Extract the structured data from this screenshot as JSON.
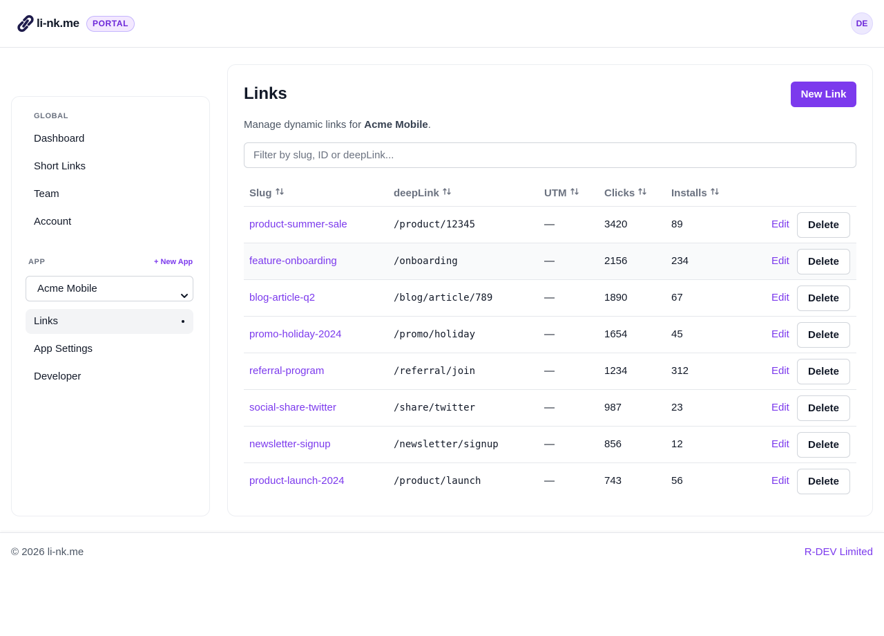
{
  "header": {
    "brand": "li-nk.me",
    "badge": "PORTAL",
    "avatar_initials": "DE",
    "logo_icon": "chain-link-icon"
  },
  "sidebar": {
    "global_label": "GLOBAL",
    "global_items": [
      {
        "label": "Dashboard"
      },
      {
        "label": "Short Links"
      },
      {
        "label": "Team"
      },
      {
        "label": "Account"
      }
    ],
    "app_label": "APP",
    "new_app_label": "+ New App",
    "app_select_value": "Acme Mobile",
    "app_items": [
      {
        "label": "Links",
        "active": true
      },
      {
        "label": "App Settings"
      },
      {
        "label": "Developer"
      }
    ]
  },
  "main": {
    "title": "Links",
    "new_link_label": "New Link",
    "subtitle_prefix": "Manage dynamic links for ",
    "subtitle_app": "Acme Mobile",
    "subtitle_suffix": ".",
    "filter_placeholder": "Filter by slug, ID or deepLink...",
    "columns": {
      "slug": "Slug",
      "deeplink": "deepLink",
      "utm": "UTM",
      "clicks": "Clicks",
      "installs": "Installs"
    },
    "edit_label": "Edit",
    "delete_label": "Delete",
    "rows": [
      {
        "slug": "product-summer-sale",
        "deeplink": "/product/12345",
        "utm": "—",
        "clicks": "3420",
        "installs": "89"
      },
      {
        "slug": "feature-onboarding",
        "deeplink": "/onboarding",
        "utm": "—",
        "clicks": "2156",
        "installs": "234"
      },
      {
        "slug": "blog-article-q2",
        "deeplink": "/blog/article/789",
        "utm": "—",
        "clicks": "1890",
        "installs": "67"
      },
      {
        "slug": "promo-holiday-2024",
        "deeplink": "/promo/holiday",
        "utm": "—",
        "clicks": "1654",
        "installs": "45"
      },
      {
        "slug": "referral-program",
        "deeplink": "/referral/join",
        "utm": "—",
        "clicks": "1234",
        "installs": "312"
      },
      {
        "slug": "social-share-twitter",
        "deeplink": "/share/twitter",
        "utm": "—",
        "clicks": "987",
        "installs": "23"
      },
      {
        "slug": "newsletter-signup",
        "deeplink": "/newsletter/signup",
        "utm": "—",
        "clicks": "856",
        "installs": "12"
      },
      {
        "slug": "product-launch-2024",
        "deeplink": "/product/launch",
        "utm": "—",
        "clicks": "743",
        "installs": "56"
      }
    ]
  },
  "footer": {
    "copyright": "© 2026 li-nk.me",
    "company": "R-DEV Limited"
  },
  "colors": {
    "accent": "#7c3aed",
    "border": "#e5e7eb",
    "text": "#111827",
    "muted": "#6b7280"
  }
}
